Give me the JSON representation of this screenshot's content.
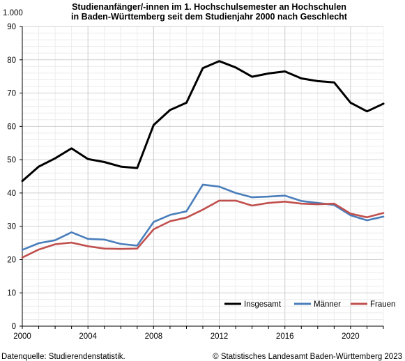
{
  "chart_data": {
    "type": "line",
    "title": "Studienanfänger/-innen im 1. Hochschulsemester an Hochschulen",
    "subtitle": "in Baden-Württemberg seit dem Studienjahr 2000 nach Geschlecht",
    "unit_label": "1.000",
    "xlabel": "",
    "ylabel": "",
    "x": [
      2000,
      2001,
      2002,
      2003,
      2004,
      2005,
      2006,
      2007,
      2008,
      2009,
      2010,
      2011,
      2012,
      2013,
      2014,
      2015,
      2016,
      2017,
      2018,
      2019,
      2020,
      2021,
      2022
    ],
    "xlim": [
      2000,
      2022
    ],
    "ylim": [
      0,
      90
    ],
    "x_ticks": [
      2000,
      2004,
      2008,
      2012,
      2016,
      2020
    ],
    "y_ticks": [
      0,
      10,
      20,
      30,
      40,
      50,
      60,
      70,
      80,
      90
    ],
    "grid": true,
    "legend_position": "bottom-right",
    "series": [
      {
        "name": "Insgesamt",
        "color": "#000000",
        "values": [
          43.6,
          47.9,
          50.4,
          53.4,
          50.2,
          49.3,
          47.9,
          47.5,
          60.4,
          64.9,
          67.1,
          77.5,
          79.6,
          77.7,
          74.9,
          75.9,
          76.5,
          74.4,
          73.6,
          73.2,
          67.1,
          64.5,
          66.8
        ]
      },
      {
        "name": "Männer",
        "color": "#4a7ebb",
        "values": [
          22.9,
          24.9,
          25.8,
          28.2,
          26.2,
          26.0,
          24.7,
          24.2,
          31.3,
          33.4,
          34.5,
          42.5,
          41.9,
          40.0,
          38.7,
          38.9,
          39.2,
          37.6,
          37.0,
          36.4,
          33.3,
          31.8,
          32.9
        ]
      },
      {
        "name": "Frauen",
        "color": "#c0504d",
        "values": [
          20.6,
          23.0,
          24.6,
          25.1,
          24.0,
          23.3,
          23.2,
          23.3,
          29.1,
          31.5,
          32.6,
          35.0,
          37.7,
          37.7,
          36.2,
          37.0,
          37.4,
          36.8,
          36.6,
          36.8,
          33.8,
          32.7,
          34.0
        ]
      }
    ]
  },
  "footer": {
    "source": "Datenquelle: Studierendenstatistik.",
    "copyright": "© Statistisches Landesamt Baden-Württemberg 2023"
  }
}
